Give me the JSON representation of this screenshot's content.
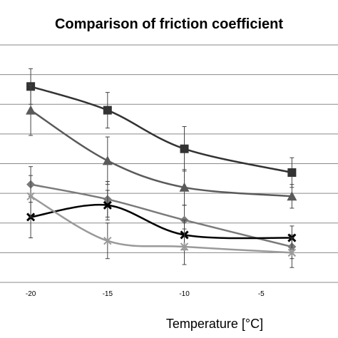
{
  "chart_data": {
    "type": "line",
    "title": "Comparison of friction coefficient",
    "xlabel": "Temperature [°C]",
    "ylabel": "",
    "x": [
      -20,
      -15,
      -10,
      -3
    ],
    "xticks": [
      -20,
      -15,
      -10,
      -5
    ],
    "xlim": [
      -22,
      0
    ],
    "ylim": [
      0,
      8
    ],
    "grid": true,
    "y_tick_labels_visible": false,
    "series": [
      {
        "marker": "square",
        "color": "#333333",
        "values": [
          6.6,
          5.8,
          4.5,
          3.7
        ],
        "err": [
          0.6,
          0.6,
          0.75,
          0.5
        ]
      },
      {
        "marker": "triangle",
        "color": "#5a5a5a",
        "values": [
          5.8,
          4.1,
          3.2,
          2.9
        ],
        "err": [
          0.85,
          0.8,
          0.6,
          0.4
        ]
      },
      {
        "marker": "diamond",
        "color": "#7a7a7a",
        "values": [
          3.3,
          2.8,
          2.1,
          1.2
        ],
        "err": [
          0.6,
          0.6,
          0.5,
          0.4
        ]
      },
      {
        "marker": "cross",
        "color": "#000000",
        "values": [
          2.2,
          2.6,
          1.6,
          1.5
        ],
        "err": [
          0.7,
          0.5,
          0.5,
          0.4
        ]
      },
      {
        "marker": "star",
        "color": "#9a9a9a",
        "values": [
          2.9,
          1.4,
          1.2,
          1.0
        ],
        "err": [
          0.7,
          0.6,
          0.6,
          0.5
        ]
      }
    ]
  }
}
